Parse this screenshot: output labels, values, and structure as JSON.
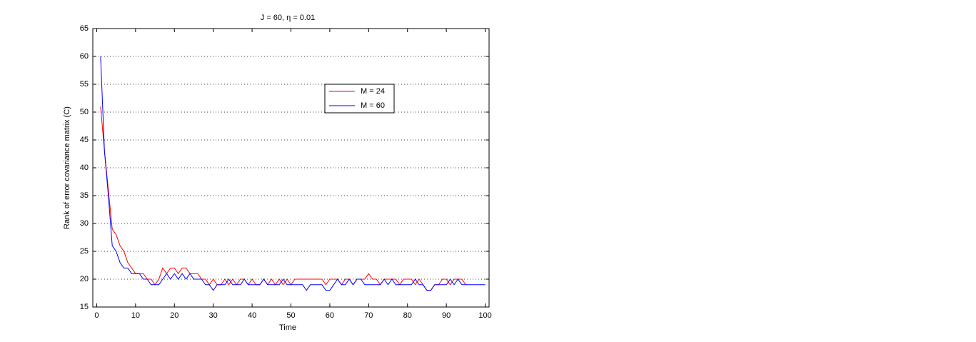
{
  "chart_data": {
    "type": "line",
    "title": "J = 60, η = 0.01",
    "x_label": "Time",
    "y_label": "Rank of error covariance matrix (C)",
    "x": [
      1,
      2,
      3,
      4,
      5,
      6,
      7,
      8,
      9,
      10,
      11,
      12,
      13,
      14,
      15,
      16,
      17,
      18,
      19,
      20,
      21,
      22,
      23,
      24,
      25,
      26,
      27,
      28,
      29,
      30,
      31,
      32,
      33,
      34,
      35,
      36,
      37,
      38,
      39,
      40,
      41,
      42,
      43,
      44,
      45,
      46,
      47,
      48,
      49,
      50,
      51,
      52,
      53,
      54,
      55,
      56,
      57,
      58,
      59,
      60,
      61,
      62,
      63,
      64,
      65,
      66,
      67,
      68,
      69,
      70,
      71,
      72,
      73,
      74,
      75,
      76,
      77,
      78,
      79,
      80,
      81,
      82,
      83,
      84,
      85,
      86,
      87,
      88,
      89,
      90,
      91,
      92,
      93,
      94,
      95,
      96,
      97,
      98,
      99,
      100
    ],
    "series": [
      {
        "name": "M = 24",
        "color": "#ff0000",
        "values": [
          51,
          43,
          36,
          29,
          28,
          26,
          25,
          23,
          22,
          21,
          21,
          21,
          20,
          20,
          19,
          20,
          22,
          21,
          22,
          22,
          21,
          22,
          22,
          21,
          21,
          21,
          20,
          20,
          19,
          20,
          19,
          19,
          20,
          19,
          20,
          19,
          20,
          20,
          19,
          20,
          19,
          19,
          20,
          19,
          20,
          19,
          20,
          19,
          20,
          19,
          20,
          20,
          20,
          20,
          20,
          20,
          20,
          20,
          19,
          20,
          20,
          20,
          19,
          20,
          20,
          19,
          20,
          20,
          20,
          21,
          20,
          20,
          19,
          20,
          20,
          20,
          20,
          19,
          20,
          20,
          20,
          19,
          20,
          19,
          18,
          18,
          19,
          19,
          20,
          20,
          19,
          20,
          20,
          20,
          19,
          null,
          null,
          null,
          null,
          null
        ]
      },
      {
        "name": "M = 60",
        "color": "#0000ff",
        "values": [
          60,
          43,
          35,
          26,
          25,
          23,
          22,
          22,
          21,
          21,
          21,
          20,
          20,
          19,
          19,
          19,
          20,
          21,
          20,
          21,
          20,
          21,
          20,
          21,
          20,
          20,
          20,
          19,
          19,
          18,
          19,
          19,
          19,
          20,
          19,
          19,
          19,
          20,
          19,
          19,
          19,
          19,
          20,
          19,
          19,
          19,
          19,
          20,
          19,
          19,
          19,
          19,
          19,
          18,
          19,
          19,
          19,
          19,
          18,
          18,
          19,
          20,
          19,
          19,
          20,
          19,
          20,
          20,
          19,
          19,
          19,
          19,
          19,
          20,
          19,
          20,
          19,
          19,
          19,
          19,
          19,
          20,
          19,
          19,
          18,
          18,
          19,
          19,
          19,
          19,
          20,
          19,
          20,
          19,
          19,
          19,
          19,
          19,
          19,
          19
        ]
      }
    ],
    "xlim": [
      -1,
      101
    ],
    "xticks": [
      0,
      10,
      20,
      30,
      40,
      50,
      60,
      70,
      80,
      90,
      100
    ],
    "ylim": [
      15,
      65
    ],
    "yticks": [
      15,
      20,
      25,
      30,
      35,
      40,
      45,
      50,
      55,
      60,
      65
    ],
    "grid": "y"
  }
}
